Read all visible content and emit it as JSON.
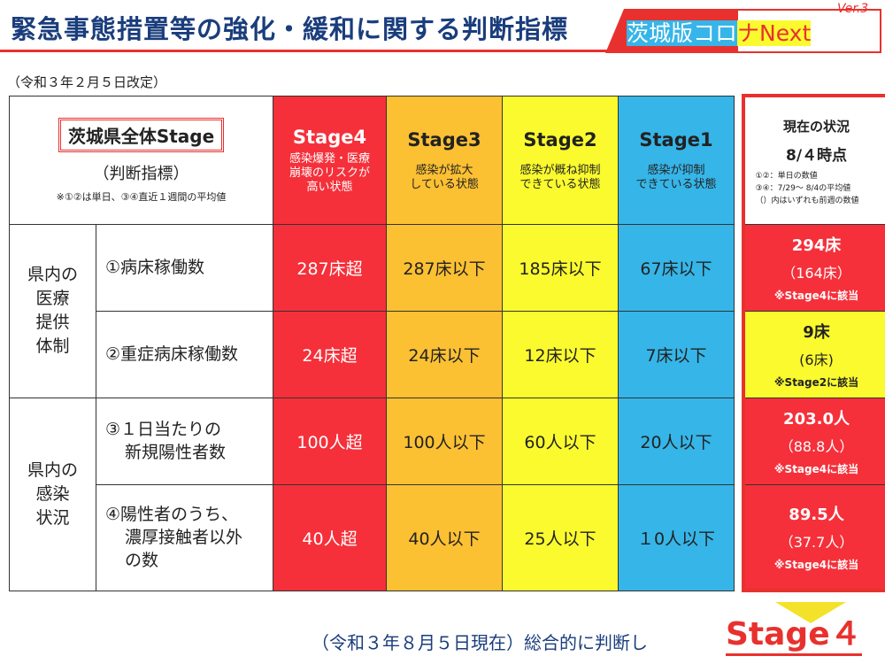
{
  "header": {
    "title": "緊急事態措置等の強化・緩和に関する判断指標",
    "brand_part1": "茨城版コロ",
    "brand_part2": "ナNext",
    "brand_version": "Ver.3"
  },
  "revision": "（令和３年２月５日改定）",
  "table": {
    "corner_title": "茨城県全体Stage",
    "corner_subtitle": "（判断指標）",
    "corner_note": "※①②は単日、③④直近１週間の平均値",
    "stages": [
      {
        "name": "Stage4",
        "desc1": "感染爆発・医療",
        "desc2": "崩壊のリスクが",
        "desc3": "高い状態"
      },
      {
        "name": "Stage3",
        "desc1": "感染が拡大",
        "desc2": "している状態",
        "desc3": ""
      },
      {
        "name": "Stage2",
        "desc1": "感染が概ね抑制",
        "desc2": "できている状態",
        "desc3": ""
      },
      {
        "name": "Stage1",
        "desc1": "感染が抑制",
        "desc2": "できている状態",
        "desc3": ""
      }
    ],
    "current_header": {
      "title": "現在の状況",
      "date": "8/４時点",
      "note1": "①②：単日の数値",
      "note2": "③④：7/29～ 8/4の平均値",
      "note3": "（）内はいずれも前週の数値"
    },
    "categories": [
      {
        "l1": "県内の",
        "l2": "医療",
        "l3": "提供",
        "l4": "体制"
      },
      {
        "l1": "県内の",
        "l2": "感染",
        "l3": "状況",
        "l4": ""
      }
    ],
    "rows": [
      {
        "indicator1": "①病床稼働数",
        "indicator2": "",
        "indicator3": "",
        "s4": "287床超",
        "s3": "287床以下",
        "s2": "185床以下",
        "s1": "67床以下",
        "current": "294床",
        "previous": "（164床）",
        "note": "※Stage4に該当"
      },
      {
        "indicator1": "②重症病床稼働数",
        "indicator2": "",
        "indicator3": "",
        "s4": "24床超",
        "s3": "24床以下",
        "s2": "12床以下",
        "s1": "7床以下",
        "current": "9床",
        "previous": "(6床)",
        "note": "※Stage2に該当"
      },
      {
        "indicator1": "③１日当たりの",
        "indicator2": "新規陽性者数",
        "indicator3": "",
        "s4": "100人超",
        "s3": "100人以下",
        "s2": "60人以下",
        "s1": "20人以下",
        "current": "203.0人",
        "previous": "（88.8人）",
        "note": "※Stage4に該当"
      },
      {
        "indicator1": "④陽性者のうち、",
        "indicator2": "濃厚接触者以外",
        "indicator3": "の数",
        "s4": "40人超",
        "s3": "40人以下",
        "s2": "25人以下",
        "s1": "１0人以下",
        "current": "89.5人",
        "previous": "（37.7人）",
        "note": "※Stage4に該当"
      }
    ]
  },
  "footer": {
    "text": "（令和３年８月５日現在）総合的に判断し",
    "stage": "Stage４"
  },
  "colors": {
    "stage4": "#f5303a",
    "stage3": "#fcc033",
    "stage2": "#fafa2e",
    "stage1": "#36b5e8",
    "accent": "#e8312e",
    "title": "#1a3d7c"
  }
}
